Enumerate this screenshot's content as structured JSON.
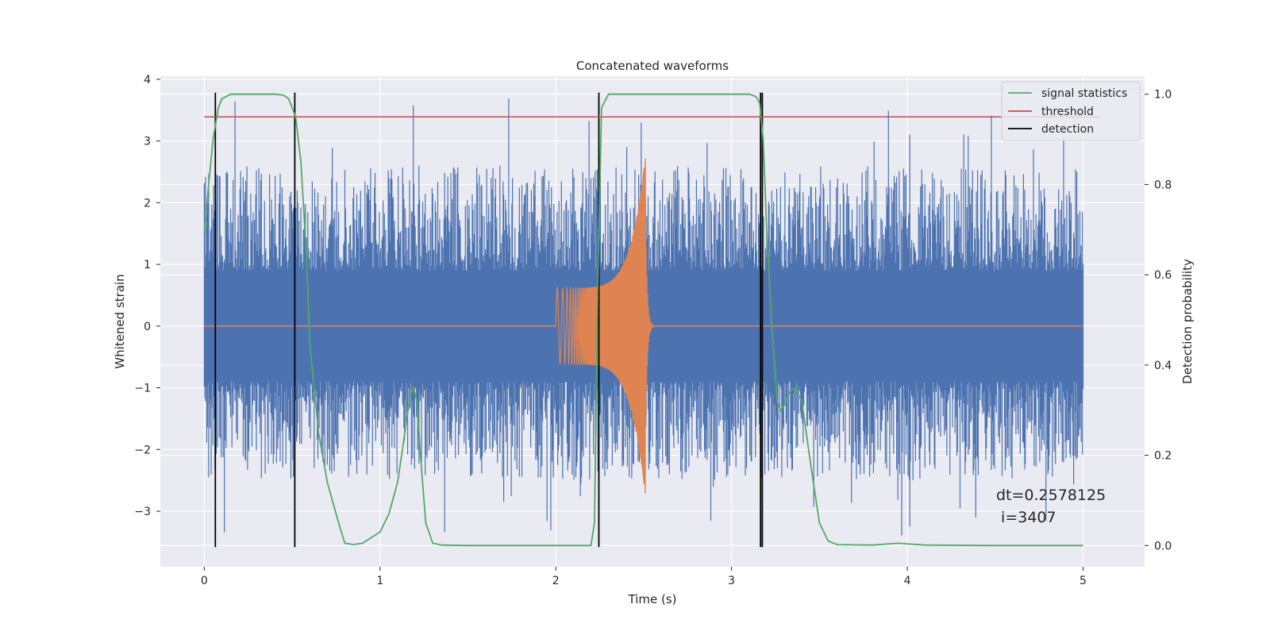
{
  "chart_data": {
    "type": "line",
    "title": "Concatenated waveforms",
    "xlabel": "Time (s)",
    "ylabel_left": "Whitened strain",
    "ylabel_right": "Detection probability",
    "xlim": [
      -0.25,
      5.35
    ],
    "ylim_left": [
      -3.9,
      4.05
    ],
    "ylim_right": [
      -0.047,
      1.04
    ],
    "xticks": [
      "0",
      "1",
      "2",
      "3",
      "4",
      "5"
    ],
    "yticks_left": [
      "−3",
      "−2",
      "−1",
      "0",
      "1",
      "2",
      "3",
      "4"
    ],
    "yticks_right": [
      "0.0",
      "0.2",
      "0.4",
      "0.6",
      "0.8",
      "1.0"
    ],
    "grid": true,
    "legend_position": "top-right",
    "legend": [
      {
        "label": "signal statistics",
        "color": "#55a868"
      },
      {
        "label": "threshold",
        "color": "#c44e52"
      },
      {
        "label": "detection",
        "color": "#000000"
      }
    ],
    "colors": {
      "strain": "#4c72b0",
      "signal": "#dd8452"
    },
    "noise": {
      "x_start": 0,
      "x_end": 5,
      "core_amplitude": 0.85,
      "max_peak": 3.7,
      "min_trough": -3.4
    },
    "injected_signal": {
      "x_start": 2.0,
      "merger": 2.51,
      "amplitude_start": 0.62,
      "amplitude_peak": 2.75,
      "ringdown_end": 2.56
    },
    "threshold": {
      "value": 0.95,
      "x": [
        0,
        5.1
      ]
    },
    "detection_lines": [
      0.063,
      0.515,
      2.245,
      3.165,
      3.175
    ],
    "signal_statistics": {
      "x": [
        0,
        0.02,
        0.05,
        0.08,
        0.1,
        0.15,
        0.2,
        0.3,
        0.4,
        0.45,
        0.48,
        0.5,
        0.52,
        0.55,
        0.58,
        0.6,
        0.65,
        0.7,
        0.75,
        0.78,
        0.8,
        0.85,
        0.9,
        1.0,
        1.05,
        1.1,
        1.13,
        1.17,
        1.19,
        1.21,
        1.23,
        1.26,
        1.3,
        1.35,
        1.5,
        2.0,
        2.2,
        2.22,
        2.24,
        2.26,
        2.3,
        2.5,
        3.0,
        3.1,
        3.14,
        3.16,
        3.18,
        3.2,
        3.23,
        3.26,
        3.28,
        3.3,
        3.33,
        3.36,
        3.4,
        3.45,
        3.5,
        3.55,
        3.6,
        3.8,
        3.95,
        4.1,
        4.5,
        5.0
      ],
      "y": [
        0.69,
        0.78,
        0.9,
        0.97,
        0.99,
        1.0,
        1.0,
        1.0,
        1.0,
        0.998,
        0.99,
        0.97,
        0.95,
        0.85,
        0.65,
        0.45,
        0.25,
        0.14,
        0.07,
        0.03,
        0.005,
        0.002,
        0.005,
        0.03,
        0.07,
        0.14,
        0.22,
        0.33,
        0.35,
        0.32,
        0.2,
        0.05,
        0.005,
        0.001,
        0.0,
        0.0,
        0.0,
        0.05,
        0.6,
        0.97,
        1.0,
        1.0,
        1.0,
        1.0,
        0.995,
        0.98,
        0.9,
        0.7,
        0.48,
        0.32,
        0.3,
        0.31,
        0.34,
        0.35,
        0.32,
        0.18,
        0.05,
        0.01,
        0.002,
        0.001,
        0.005,
        0.001,
        0.0,
        0.0
      ]
    },
    "annotation": {
      "line1": "dt=0.2578125",
      "line2": " i=3407"
    }
  }
}
